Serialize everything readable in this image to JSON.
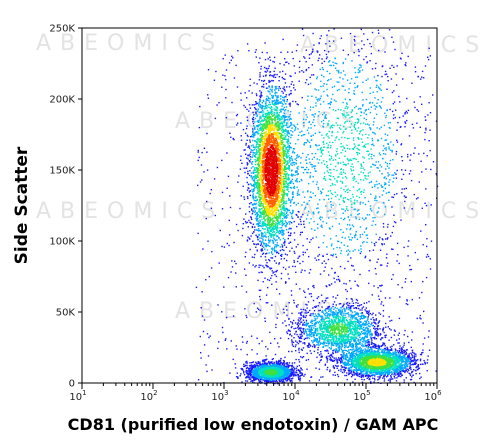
{
  "chart_data": {
    "type": "scatter",
    "subtype": "flow-cytometry density dot plot",
    "xlabel": "CD81 (purified low endotoxin) / GAM APC",
    "ylabel": "Side Scatter",
    "x_scale": "log",
    "y_scale": "linear",
    "xlim": [
      10,
      1000000
    ],
    "ylim": [
      0,
      250000
    ],
    "x_ticks": [
      {
        "value": 10,
        "base": "10",
        "exp": "1"
      },
      {
        "value": 100,
        "base": "10",
        "exp": "2"
      },
      {
        "value": 1000,
        "base": "10",
        "exp": "3"
      },
      {
        "value": 10000,
        "base": "10",
        "exp": "4"
      },
      {
        "value": 100000,
        "base": "10",
        "exp": "5"
      },
      {
        "value": 1000000,
        "base": "10",
        "exp": "6"
      }
    ],
    "y_ticks": [
      {
        "value": 0,
        "label": "0"
      },
      {
        "value": 50000,
        "label": "50K"
      },
      {
        "value": 100000,
        "label": "100K"
      },
      {
        "value": 150000,
        "label": "150K"
      },
      {
        "value": 200000,
        "label": "200K"
      },
      {
        "value": 250000,
        "label": "250K"
      }
    ],
    "color_scale": [
      "#1a1aff",
      "#00a8ff",
      "#00e0c0",
      "#40e040",
      "#ffe000",
      "#ff6000",
      "#e00000"
    ],
    "populations": [
      {
        "x_center": 4500,
        "y_center": 150000,
        "x_spread_decades": 0.14,
        "y_spread": 28000,
        "events": 3800
      },
      {
        "x_center": 4500,
        "y_center": 8000,
        "x_spread_decades": 0.17,
        "y_spread": 3500,
        "events": 1700
      },
      {
        "x_center": 140000,
        "y_center": 15000,
        "x_spread_decades": 0.26,
        "y_spread": 5000,
        "events": 2300
      },
      {
        "x_center": 40000,
        "y_center": 38000,
        "x_spread_decades": 0.3,
        "y_spread": 9000,
        "events": 1600
      },
      {
        "x_center": 50000,
        "y_center": 160000,
        "x_spread_decades": 0.5,
        "y_spread": 50000,
        "events": 1300
      }
    ],
    "grid": false,
    "legend": "none"
  },
  "watermark": "ABEOMICS"
}
